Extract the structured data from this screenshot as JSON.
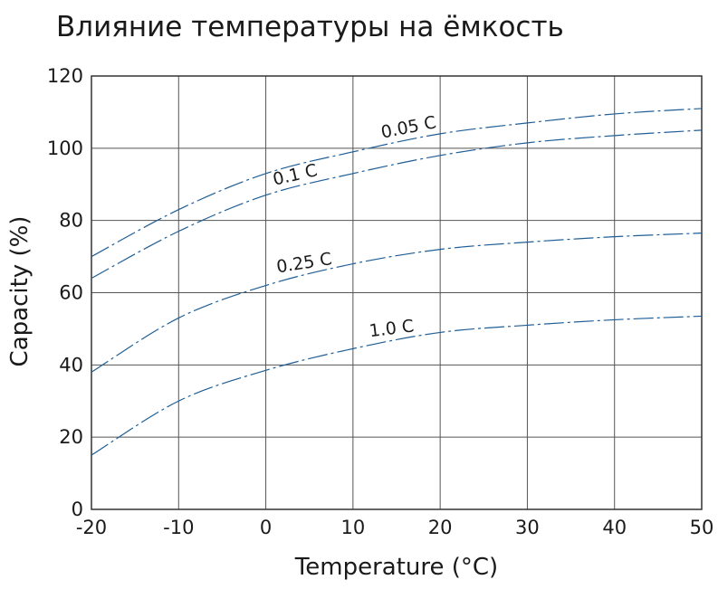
{
  "chart_data": {
    "type": "line",
    "title": "Влияние температуры на ёмкость",
    "xlabel": "Temperature (°C)",
    "ylabel": "Capacity (%)",
    "xlim": [
      -20,
      50
    ],
    "ylim": [
      0,
      120
    ],
    "xticks": [
      -20,
      -10,
      0,
      10,
      20,
      30,
      40,
      50
    ],
    "xtick_labels": [
      "-20",
      "-10",
      "0",
      "10",
      "20",
      "30",
      "40",
      "50"
    ],
    "yticks": [
      0,
      20,
      40,
      60,
      80,
      100,
      120
    ],
    "ytick_labels": [
      "0",
      "20",
      "40",
      "60",
      "80",
      "100",
      "120"
    ],
    "grid": true,
    "line_color": "#1f5e96",
    "series": [
      {
        "name": "0.05 C",
        "x": [
          -20,
          -10,
          0,
          10,
          20,
          30,
          40,
          50
        ],
        "values": [
          70,
          83,
          93,
          99,
          104,
          107,
          109.5,
          111
        ]
      },
      {
        "name": "0.1 C",
        "x": [
          -20,
          -10,
          0,
          10,
          20,
          30,
          40,
          50
        ],
        "values": [
          64,
          77,
          87,
          93,
          98,
          101.5,
          103.5,
          105
        ]
      },
      {
        "name": "0.25 C",
        "x": [
          -20,
          -10,
          0,
          10,
          20,
          30,
          40,
          50
        ],
        "values": [
          38,
          53,
          62,
          68,
          72,
          74,
          75.5,
          76.5
        ]
      },
      {
        "name": "1.0 C",
        "x": [
          -20,
          -10,
          0,
          10,
          20,
          30,
          40,
          50
        ],
        "values": [
          15,
          30,
          38.5,
          44.5,
          49,
          51,
          52.5,
          53.5
        ]
      }
    ]
  }
}
